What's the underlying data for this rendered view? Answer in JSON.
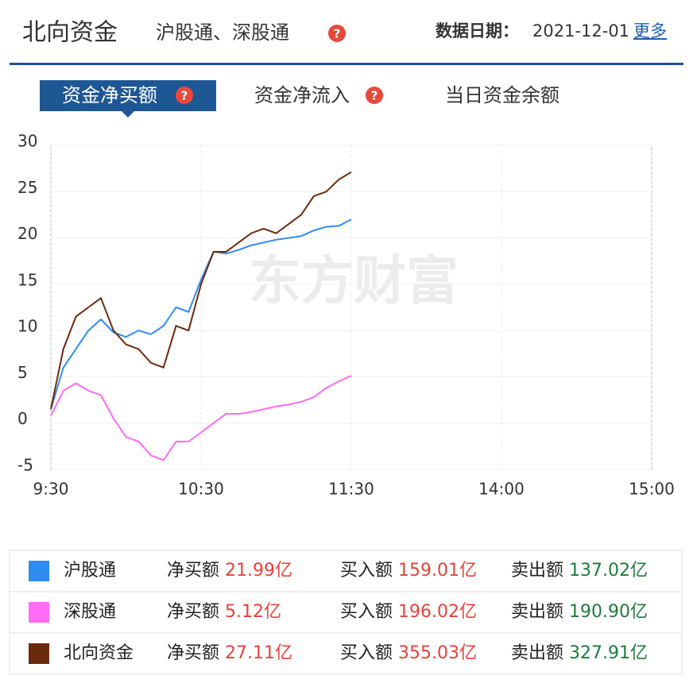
{
  "header": {
    "title": "北向资金",
    "subtitle": "沪股通、深股通",
    "date_label": "数据日期：",
    "date": "2021-12-01",
    "more": "更多"
  },
  "tabs": [
    "资金净买额",
    "资金净流入",
    "当日资金余额"
  ],
  "chart_data": {
    "type": "line",
    "watermark": "东方财富",
    "x": [
      0,
      5,
      10,
      15,
      20,
      25,
      30,
      35,
      40,
      45,
      50,
      55,
      60,
      65,
      70,
      75,
      80,
      85,
      90,
      95,
      100,
      105,
      110,
      115,
      120
    ],
    "xlim": [
      0,
      240
    ],
    "xticks": [
      {
        "value": 0,
        "label": "9:30"
      },
      {
        "value": 60,
        "label": "10:30"
      },
      {
        "value": 120,
        "label": "11:30"
      },
      {
        "value": 180,
        "label": "14:00"
      },
      {
        "value": 240,
        "label": "15:00"
      }
    ],
    "ylim": [
      -5,
      30
    ],
    "yticks": [
      -5,
      0,
      5,
      10,
      15,
      20,
      25,
      30
    ],
    "grid": true,
    "series": [
      {
        "name": "沪股通",
        "color": "#2f8cf0",
        "values": [
          1.5,
          6,
          8,
          10,
          11.2,
          9.8,
          9.3,
          10,
          9.6,
          10.5,
          12.5,
          12,
          15.5,
          18.5,
          18.3,
          18.7,
          19.2,
          19.5,
          19.8,
          20,
          20.2,
          20.8,
          21.2,
          21.3,
          21.99
        ]
      },
      {
        "name": "深股通",
        "color": "#ff6cf5",
        "values": [
          0.8,
          3.5,
          4.3,
          3.5,
          3,
          0.5,
          -1.5,
          -2,
          -3.5,
          -4,
          -2,
          -2,
          -1,
          0,
          1,
          1,
          1.2,
          1.5,
          1.8,
          2,
          2.3,
          2.8,
          3.8,
          4.5,
          5.12
        ]
      },
      {
        "name": "北向资金",
        "color": "#6b2a0e",
        "values": [
          1.5,
          8,
          11.5,
          12.5,
          13.5,
          10,
          8.5,
          8,
          6.5,
          6,
          10.5,
          10,
          15,
          18.5,
          18.5,
          19.5,
          20.5,
          21,
          20.5,
          21.5,
          22.5,
          24.5,
          25,
          26.3,
          27.11
        ]
      }
    ]
  },
  "summary": {
    "labels": {
      "net": "净买额",
      "buy": "买入额",
      "sell": "卖出额"
    },
    "rows": [
      {
        "net": "21.99亿",
        "buy": "159.01亿",
        "sell": "137.02亿"
      },
      {
        "net": "5.12亿",
        "buy": "196.02亿",
        "sell": "190.90亿"
      },
      {
        "net": "27.11亿",
        "buy": "355.03亿",
        "sell": "327.91亿"
      }
    ]
  }
}
